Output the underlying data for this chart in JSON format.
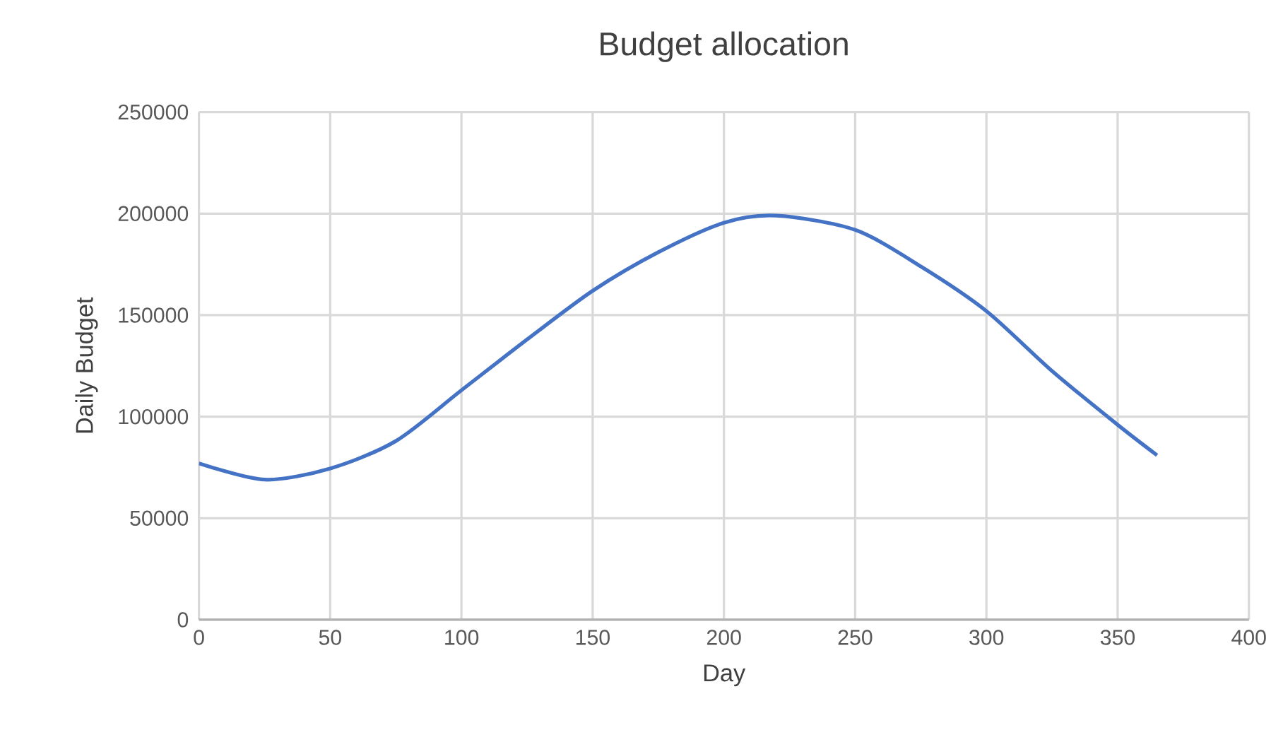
{
  "chart_data": {
    "type": "line",
    "title": "Budget allocation",
    "xlabel": "Day",
    "ylabel": "Daily Budget",
    "x": [
      0,
      25,
      50,
      75,
      100,
      125,
      150,
      175,
      200,
      220,
      250,
      275,
      300,
      325,
      350,
      365
    ],
    "series": [
      {
        "color": "#4472c4",
        "values": [
          77000,
          69000,
          74500,
          88000,
          113000,
          138000,
          162000,
          181000,
          195500,
          199000,
          192000,
          174000,
          152000,
          122500,
          96000,
          81000
        ]
      }
    ],
    "xlim": [
      0,
      400
    ],
    "xticks": [
      0,
      50,
      100,
      150,
      200,
      250,
      300,
      350,
      400
    ],
    "ylim": [
      0,
      250000
    ],
    "yticks": [
      0,
      50000,
      100000,
      150000,
      200000,
      250000
    ],
    "grid": true,
    "legend": false,
    "marker": "none",
    "line_style": "solid"
  }
}
